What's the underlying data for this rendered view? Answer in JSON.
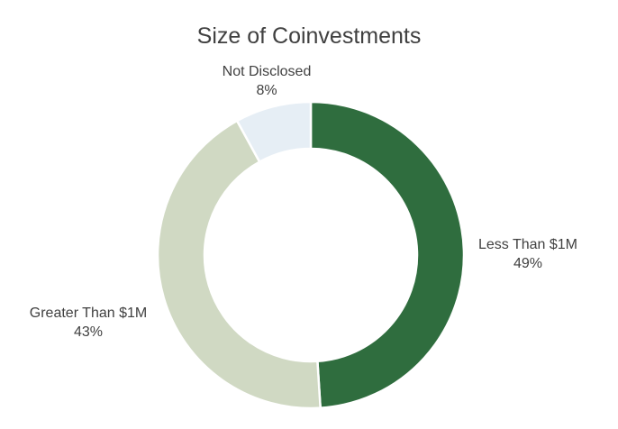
{
  "chart_data": {
    "type": "pie",
    "variant": "donut",
    "title": "Size of Coinvestments",
    "slices": [
      {
        "label": "Less Than $1M",
        "value": 49,
        "value_label": "49%",
        "color": "#2f6d3e"
      },
      {
        "label": "Greater Than $1M",
        "value": 43,
        "value_label": "43%",
        "color": "#d0d9c3"
      },
      {
        "label": "Not Disclosed",
        "value": 8,
        "value_label": "8%",
        "color": "#e6eef5"
      }
    ],
    "start_angle_deg": 0,
    "direction": "clockwise",
    "legend": "none"
  }
}
